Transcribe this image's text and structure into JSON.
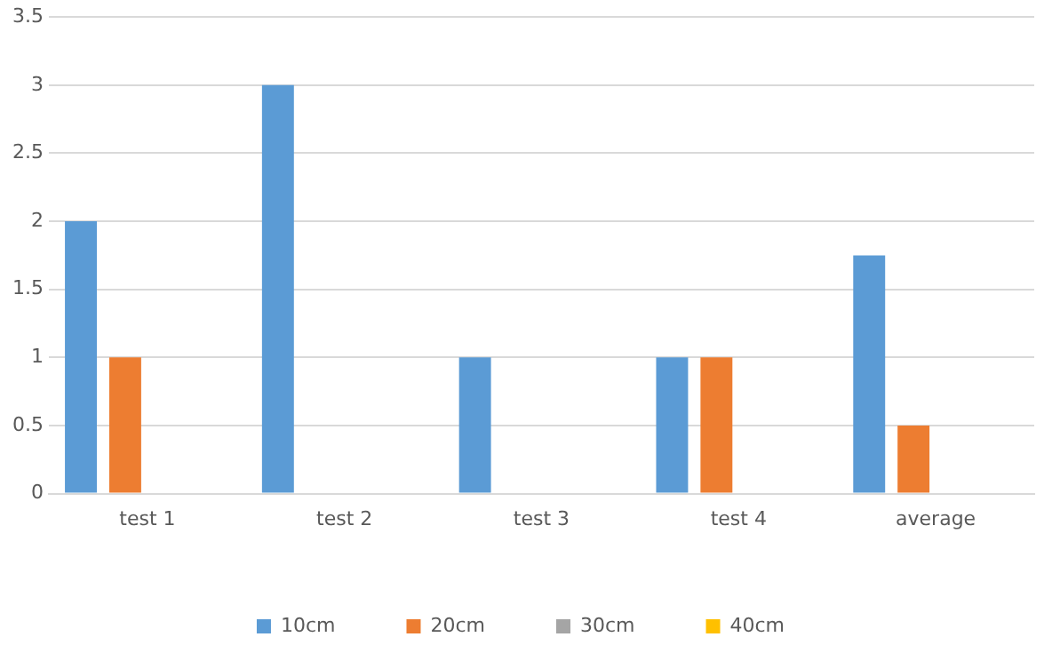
{
  "chart_data": {
    "type": "bar",
    "categories": [
      "test 1",
      "test 2",
      "test 3",
      "test 4",
      "average"
    ],
    "series": [
      {
        "name": "10cm",
        "color": "#5b9bd5",
        "values": [
          2,
          3,
          1,
          1,
          1.75
        ]
      },
      {
        "name": "20cm",
        "color": "#ed7d31",
        "values": [
          1,
          0,
          0,
          1,
          0.5
        ]
      },
      {
        "name": "30cm",
        "color": "#a5a5a5",
        "values": [
          0,
          0,
          0,
          0,
          0
        ]
      },
      {
        "name": "40cm",
        "color": "#ffc000",
        "values": [
          0,
          0,
          0,
          0,
          0
        ]
      }
    ],
    "ylim": [
      0,
      3.5
    ],
    "yticks": [
      0,
      0.5,
      1,
      1.5,
      2,
      2.5,
      3,
      3.5
    ],
    "grid": "y",
    "legend": "bottom"
  }
}
